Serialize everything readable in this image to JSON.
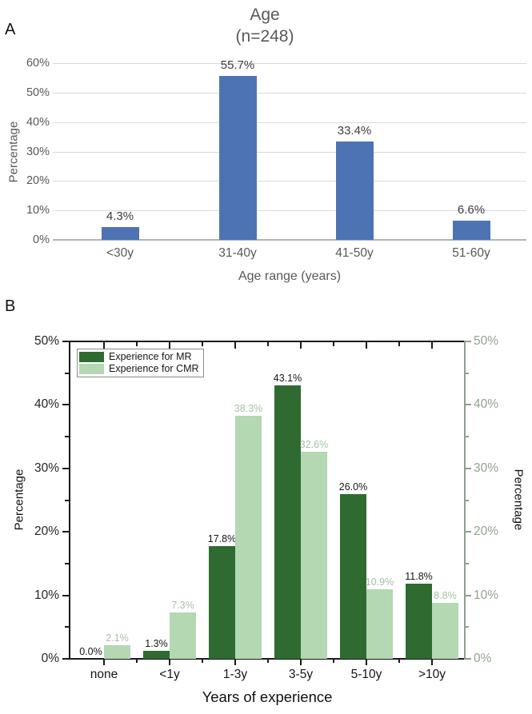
{
  "figure": {
    "panelA_label": "A",
    "panelB_label": "B"
  },
  "colors": {
    "blue_bar": "#4e73b4",
    "mr_green": "#2f6b31",
    "cmr_green": "#b3d8b2",
    "cmr_value_label": "#a4c2a4",
    "right_axis_text": "#90a590",
    "right_spine": "#8f9f8f",
    "panelA_gray": "#595959",
    "grid": "#dadada",
    "black_text": "#1a1a1a"
  },
  "chart_data": [
    {
      "type": "bar",
      "panel": "A",
      "title_line1": "Age",
      "title_line2": "(n=248)",
      "categories": [
        "<30y",
        "31-40y",
        "41-50y",
        "51-60y"
      ],
      "values": [
        4.3,
        55.7,
        33.4,
        6.6
      ],
      "value_labels": [
        "4.3%",
        "55.7%",
        "33.4%",
        "6.6%"
      ],
      "xlabel": "Age range (years)",
      "ylabel": "Percentage",
      "ylim": [
        0,
        60
      ],
      "yticks": [
        0,
        10,
        20,
        30,
        40,
        50,
        60
      ],
      "ytick_labels": [
        "0%",
        "10%",
        "20%",
        "30%",
        "40%",
        "50%",
        "60%"
      ],
      "grid": true,
      "legend_position": "none",
      "bar_color": "#4e73b4"
    },
    {
      "type": "bar",
      "panel": "B",
      "categories": [
        "none",
        "<1y",
        "1-3y",
        "3-5y",
        "5-10y",
        ">10y"
      ],
      "series": [
        {
          "name": "Experience for MR",
          "color": "#2f6b31",
          "values": [
            0.0,
            1.3,
            17.8,
            43.1,
            26.0,
            11.8
          ],
          "value_labels": [
            "0.0%",
            "1.3%",
            "17.8%",
            "43.1%",
            "26.0%",
            "11.8%"
          ],
          "label_color": "#161616"
        },
        {
          "name": "Experience for CMR",
          "color": "#b3d8b2",
          "values": [
            2.1,
            7.3,
            38.3,
            32.6,
            10.9,
            8.8
          ],
          "value_labels": [
            "2.1%",
            "7.3%",
            "38.3%",
            "32.6%",
            "10.9%",
            "8.8%"
          ],
          "label_color": "#a4c2a4"
        }
      ],
      "xlabel": "Years of experience",
      "ylabel_left": "Percentage",
      "ylabel_right": "Percentage",
      "ylim": [
        0,
        50
      ],
      "yticks": [
        0,
        10,
        20,
        30,
        40,
        50
      ],
      "ytick_labels": [
        "0%",
        "10%",
        "20%",
        "30%",
        "40%",
        "50%"
      ],
      "grid": false,
      "legend_position": "top-left"
    }
  ]
}
